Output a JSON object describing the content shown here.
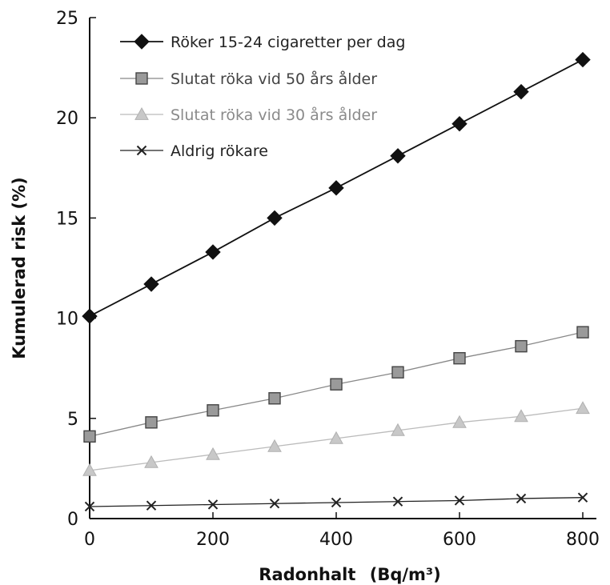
{
  "chart_data": {
    "type": "line",
    "title": "",
    "xlabel": "Radonhalt",
    "xlabel_unit": "(Bq/m³)",
    "ylabel": "Kumulerad risk (%)",
    "xlim": [
      0,
      800
    ],
    "ylim": [
      0,
      25
    ],
    "x": [
      0,
      100,
      200,
      300,
      400,
      500,
      600,
      700,
      800
    ],
    "x_ticks": [
      "0",
      "200",
      "400",
      "600",
      "800"
    ],
    "y_ticks": [
      "0",
      "5",
      "10",
      "15",
      "20",
      "25"
    ],
    "grid": false,
    "legend_position": "top-left",
    "series": [
      {
        "name": "Röker 15-24 cigaretter per dag",
        "marker": "diamond",
        "color": "#111111",
        "values": [
          10.1,
          11.7,
          13.3,
          15.0,
          16.5,
          18.1,
          19.7,
          21.3,
          22.9
        ]
      },
      {
        "name": "Slutat röka vid 50 års ålder",
        "marker": "square",
        "color": "#888888",
        "values": [
          4.1,
          4.8,
          5.4,
          6.0,
          6.7,
          7.3,
          8.0,
          8.6,
          9.3
        ]
      },
      {
        "name": "Slutat röka vid 30 års ålder",
        "marker": "triangle",
        "color": "#bbbbbb",
        "values": [
          2.4,
          2.8,
          3.2,
          3.6,
          4.0,
          4.4,
          4.8,
          5.1,
          5.5
        ]
      },
      {
        "name": "Aldrig rökare",
        "marker": "x",
        "color": "#222222",
        "values": [
          0.6,
          0.65,
          0.7,
          0.75,
          0.8,
          0.85,
          0.9,
          1.0,
          1.05
        ]
      }
    ]
  }
}
